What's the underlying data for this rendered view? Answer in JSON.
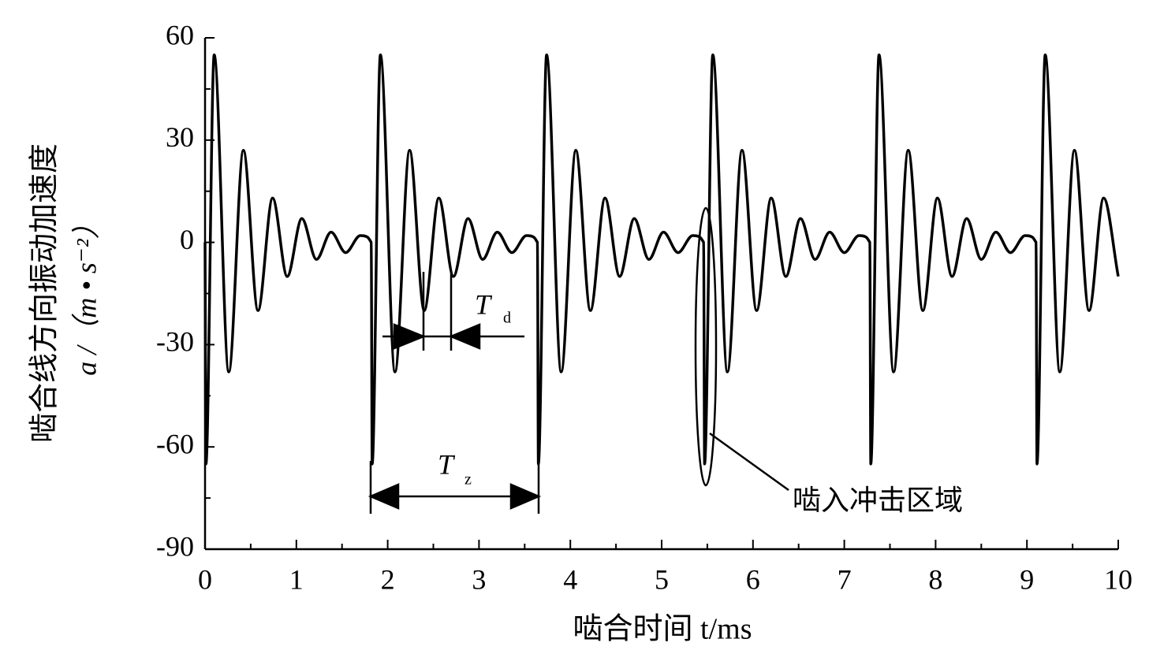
{
  "chart_data": {
    "type": "line",
    "y_label_lines": [
      "啮合线方向振动加速度",
      "a /（m • s⁻²）"
    ],
    "x_label": "啮合时间 t/ms",
    "x": [
      0,
      0.01,
      0.1,
      0.26,
      0.42,
      0.58,
      0.74,
      0.9,
      1.06,
      1.22,
      1.38,
      1.54,
      1.7,
      1.78,
      1.82,
      1.83,
      1.92,
      2.08,
      2.24,
      2.4,
      2.56,
      2.72,
      2.88,
      3.04,
      3.2,
      3.36,
      3.52,
      3.6,
      3.64,
      3.65,
      3.74,
      3.9,
      4.06,
      4.22,
      4.38,
      4.54,
      4.7,
      4.86,
      5.02,
      5.18,
      5.34,
      5.42,
      5.46,
      5.47,
      5.56,
      5.72,
      5.88,
      6.04,
      6.2,
      6.36,
      6.52,
      6.68,
      6.84,
      7.0,
      7.16,
      7.24,
      7.28,
      7.29,
      7.38,
      7.54,
      7.7,
      7.86,
      8.02,
      8.18,
      8.34,
      8.5,
      8.66,
      8.82,
      8.98,
      9.06,
      9.1,
      9.11,
      9.2,
      9.36,
      9.52,
      9.68,
      9.84,
      10.0
    ],
    "series": [
      {
        "color": "#000000",
        "values": [
          0,
          -65,
          55,
          -38,
          27,
          -20,
          13,
          -10,
          7,
          -5,
          3,
          -3,
          2,
          1.5,
          0,
          -65,
          55,
          -38,
          27,
          -20,
          13,
          -10,
          7,
          -5,
          3,
          -3,
          2,
          1.5,
          0,
          -65,
          55,
          -38,
          27,
          -20,
          13,
          -10,
          7,
          -5,
          3,
          -3,
          2,
          1.5,
          0,
          -65,
          55,
          -38,
          27,
          -20,
          13,
          -10,
          7,
          -5,
          3,
          -3,
          2,
          1.5,
          0,
          -65,
          55,
          -38,
          27,
          -20,
          13,
          -10,
          7,
          -5,
          3,
          -3,
          2,
          1.5,
          0,
          -65,
          55,
          -38,
          27,
          -20,
          13,
          -10
        ]
      }
    ],
    "xlim": [
      0,
      10
    ],
    "ylim": [
      -90,
      60
    ],
    "xticks": [
      0,
      1,
      2,
      3,
      4,
      5,
      6,
      7,
      8,
      9,
      10
    ],
    "yticks": [
      -90,
      -60,
      -30,
      0,
      30,
      60
    ],
    "xminorticks": [
      0.5,
      1.5,
      2.5,
      3.5,
      4.5,
      5.5,
      6.5,
      7.5,
      8.5,
      9.5
    ],
    "yminorticks": [
      -75,
      -45,
      -15,
      15,
      45
    ],
    "annotations": {
      "td": {
        "text": "T",
        "sub": "d"
      },
      "tz": {
        "text": "T",
        "sub": "z"
      },
      "impact": "啮入冲击区域"
    }
  }
}
